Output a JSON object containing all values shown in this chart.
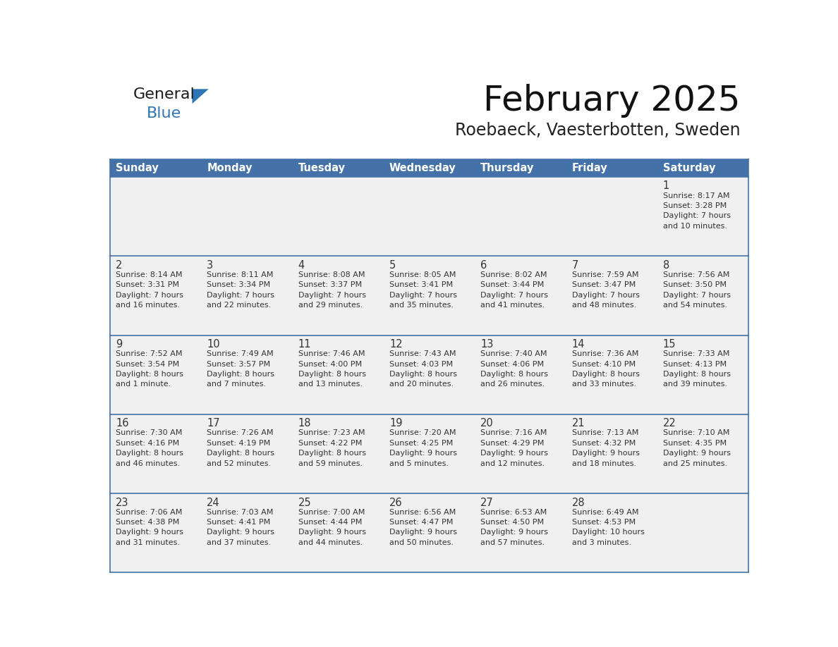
{
  "title": "February 2025",
  "subtitle": "Roebaeck, Vaesterbotten, Sweden",
  "days_of_week": [
    "Sunday",
    "Monday",
    "Tuesday",
    "Wednesday",
    "Thursday",
    "Friday",
    "Saturday"
  ],
  "header_bg": "#4472A8",
  "header_text": "#FFFFFF",
  "cell_bg": "#F0F0F0",
  "row_line_color": "#4472A8",
  "day_num_color": "#333333",
  "info_text_color": "#333333",
  "border_color": "#4472A8",
  "logo_general_color": "#1a1a1a",
  "logo_blue_color": "#2E75B6",
  "calendar_data": [
    [
      {
        "day": null,
        "info": null
      },
      {
        "day": null,
        "info": null
      },
      {
        "day": null,
        "info": null
      },
      {
        "day": null,
        "info": null
      },
      {
        "day": null,
        "info": null
      },
      {
        "day": null,
        "info": null
      },
      {
        "day": 1,
        "info": "Sunrise: 8:17 AM\nSunset: 3:28 PM\nDaylight: 7 hours\nand 10 minutes."
      }
    ],
    [
      {
        "day": 2,
        "info": "Sunrise: 8:14 AM\nSunset: 3:31 PM\nDaylight: 7 hours\nand 16 minutes."
      },
      {
        "day": 3,
        "info": "Sunrise: 8:11 AM\nSunset: 3:34 PM\nDaylight: 7 hours\nand 22 minutes."
      },
      {
        "day": 4,
        "info": "Sunrise: 8:08 AM\nSunset: 3:37 PM\nDaylight: 7 hours\nand 29 minutes."
      },
      {
        "day": 5,
        "info": "Sunrise: 8:05 AM\nSunset: 3:41 PM\nDaylight: 7 hours\nand 35 minutes."
      },
      {
        "day": 6,
        "info": "Sunrise: 8:02 AM\nSunset: 3:44 PM\nDaylight: 7 hours\nand 41 minutes."
      },
      {
        "day": 7,
        "info": "Sunrise: 7:59 AM\nSunset: 3:47 PM\nDaylight: 7 hours\nand 48 minutes."
      },
      {
        "day": 8,
        "info": "Sunrise: 7:56 AM\nSunset: 3:50 PM\nDaylight: 7 hours\nand 54 minutes."
      }
    ],
    [
      {
        "day": 9,
        "info": "Sunrise: 7:52 AM\nSunset: 3:54 PM\nDaylight: 8 hours\nand 1 minute."
      },
      {
        "day": 10,
        "info": "Sunrise: 7:49 AM\nSunset: 3:57 PM\nDaylight: 8 hours\nand 7 minutes."
      },
      {
        "day": 11,
        "info": "Sunrise: 7:46 AM\nSunset: 4:00 PM\nDaylight: 8 hours\nand 13 minutes."
      },
      {
        "day": 12,
        "info": "Sunrise: 7:43 AM\nSunset: 4:03 PM\nDaylight: 8 hours\nand 20 minutes."
      },
      {
        "day": 13,
        "info": "Sunrise: 7:40 AM\nSunset: 4:06 PM\nDaylight: 8 hours\nand 26 minutes."
      },
      {
        "day": 14,
        "info": "Sunrise: 7:36 AM\nSunset: 4:10 PM\nDaylight: 8 hours\nand 33 minutes."
      },
      {
        "day": 15,
        "info": "Sunrise: 7:33 AM\nSunset: 4:13 PM\nDaylight: 8 hours\nand 39 minutes."
      }
    ],
    [
      {
        "day": 16,
        "info": "Sunrise: 7:30 AM\nSunset: 4:16 PM\nDaylight: 8 hours\nand 46 minutes."
      },
      {
        "day": 17,
        "info": "Sunrise: 7:26 AM\nSunset: 4:19 PM\nDaylight: 8 hours\nand 52 minutes."
      },
      {
        "day": 18,
        "info": "Sunrise: 7:23 AM\nSunset: 4:22 PM\nDaylight: 8 hours\nand 59 minutes."
      },
      {
        "day": 19,
        "info": "Sunrise: 7:20 AM\nSunset: 4:25 PM\nDaylight: 9 hours\nand 5 minutes."
      },
      {
        "day": 20,
        "info": "Sunrise: 7:16 AM\nSunset: 4:29 PM\nDaylight: 9 hours\nand 12 minutes."
      },
      {
        "day": 21,
        "info": "Sunrise: 7:13 AM\nSunset: 4:32 PM\nDaylight: 9 hours\nand 18 minutes."
      },
      {
        "day": 22,
        "info": "Sunrise: 7:10 AM\nSunset: 4:35 PM\nDaylight: 9 hours\nand 25 minutes."
      }
    ],
    [
      {
        "day": 23,
        "info": "Sunrise: 7:06 AM\nSunset: 4:38 PM\nDaylight: 9 hours\nand 31 minutes."
      },
      {
        "day": 24,
        "info": "Sunrise: 7:03 AM\nSunset: 4:41 PM\nDaylight: 9 hours\nand 37 minutes."
      },
      {
        "day": 25,
        "info": "Sunrise: 7:00 AM\nSunset: 4:44 PM\nDaylight: 9 hours\nand 44 minutes."
      },
      {
        "day": 26,
        "info": "Sunrise: 6:56 AM\nSunset: 4:47 PM\nDaylight: 9 hours\nand 50 minutes."
      },
      {
        "day": 27,
        "info": "Sunrise: 6:53 AM\nSunset: 4:50 PM\nDaylight: 9 hours\nand 57 minutes."
      },
      {
        "day": 28,
        "info": "Sunrise: 6:49 AM\nSunset: 4:53 PM\nDaylight: 10 hours\nand 3 minutes."
      },
      {
        "day": null,
        "info": null
      }
    ]
  ]
}
